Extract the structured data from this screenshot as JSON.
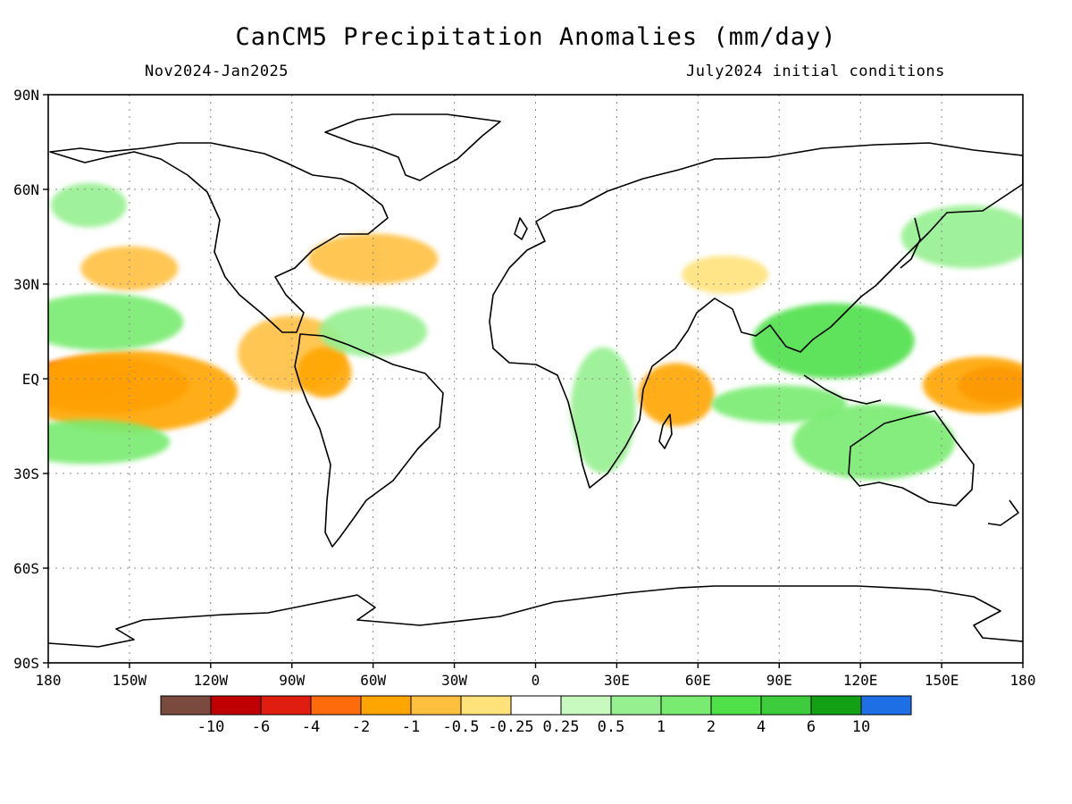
{
  "title": "CanCM5 Precipitation Anomalies (mm/day)",
  "period": "Nov2024-Jan2025",
  "init": "July2024 initial conditions",
  "lat_ticks": [
    "90N",
    "60N",
    "30N",
    "EQ",
    "30S",
    "60S",
    "90S"
  ],
  "lon_ticks": [
    "180",
    "150W",
    "120W",
    "90W",
    "60W",
    "30W",
    "0",
    "30E",
    "60E",
    "90E",
    "120E",
    "150E",
    "180"
  ],
  "colorbar": {
    "colors": [
      "#7a4a3e",
      "#c00000",
      "#e01e10",
      "#ff6a0a",
      "#ffa500",
      "#ffc040",
      "#ffe27a",
      "#ffffff",
      "#c8fac0",
      "#96f090",
      "#78eb70",
      "#50e04a",
      "#3ccc3c",
      "#14a014",
      "#1e6fe6"
    ],
    "labels": [
      "-10",
      "-6",
      "-4",
      "-2",
      "-1",
      "-0.5",
      "-0.25",
      "0.25",
      "0.5",
      "1",
      "2",
      "4",
      "6",
      "10"
    ]
  },
  "anomalies": [
    {
      "lon": -170,
      "lat": -1,
      "rx": 22,
      "ry": 6,
      "level": "-4"
    },
    {
      "lon": -160,
      "lat": -2,
      "rx": 32,
      "ry": 9,
      "level": "-2"
    },
    {
      "lon": -150,
      "lat": -4,
      "rx": 40,
      "ry": 13,
      "level": "-1"
    },
    {
      "lon": -150,
      "lat": 35,
      "rx": 18,
      "ry": 7,
      "level": "-0.5"
    },
    {
      "lon": -90,
      "lat": 8,
      "rx": 20,
      "ry": 12,
      "level": "-0.5"
    },
    {
      "lon": -78,
      "lat": 2,
      "rx": 10,
      "ry": 8,
      "level": "-1"
    },
    {
      "lon": -60,
      "lat": 38,
      "rx": 24,
      "ry": 8,
      "level": "-0.5"
    },
    {
      "lon": 52,
      "lat": -5,
      "rx": 14,
      "ry": 10,
      "level": "-1"
    },
    {
      "lon": 70,
      "lat": 33,
      "rx": 16,
      "ry": 6,
      "level": "-0.25"
    },
    {
      "lon": 170,
      "lat": -2,
      "rx": 14,
      "ry": 6,
      "level": "-4"
    },
    {
      "lon": 165,
      "lat": -2,
      "rx": 22,
      "ry": 9,
      "level": "-1"
    },
    {
      "lon": -160,
      "lat": 18,
      "rx": 30,
      "ry": 9,
      "level": "1"
    },
    {
      "lon": -165,
      "lat": -20,
      "rx": 30,
      "ry": 7,
      "level": "1"
    },
    {
      "lon": -60,
      "lat": 15,
      "rx": 20,
      "ry": 8,
      "level": "0.5"
    },
    {
      "lon": 110,
      "lat": 12,
      "rx": 30,
      "ry": 12,
      "level": "2"
    },
    {
      "lon": 125,
      "lat": -20,
      "rx": 30,
      "ry": 12,
      "level": "1"
    },
    {
      "lon": 25,
      "lat": -10,
      "rx": 12,
      "ry": 20,
      "level": "0.5"
    },
    {
      "lon": 90,
      "lat": -8,
      "rx": 25,
      "ry": 6,
      "level": "1"
    },
    {
      "lon": 160,
      "lat": 45,
      "rx": 25,
      "ry": 10,
      "level": "0.5"
    },
    {
      "lon": -165,
      "lat": 55,
      "rx": 14,
      "ry": 7,
      "level": "0.5"
    }
  ],
  "colors": {
    "frame": "#000000",
    "grid": "#888888",
    "land": "#000000"
  }
}
